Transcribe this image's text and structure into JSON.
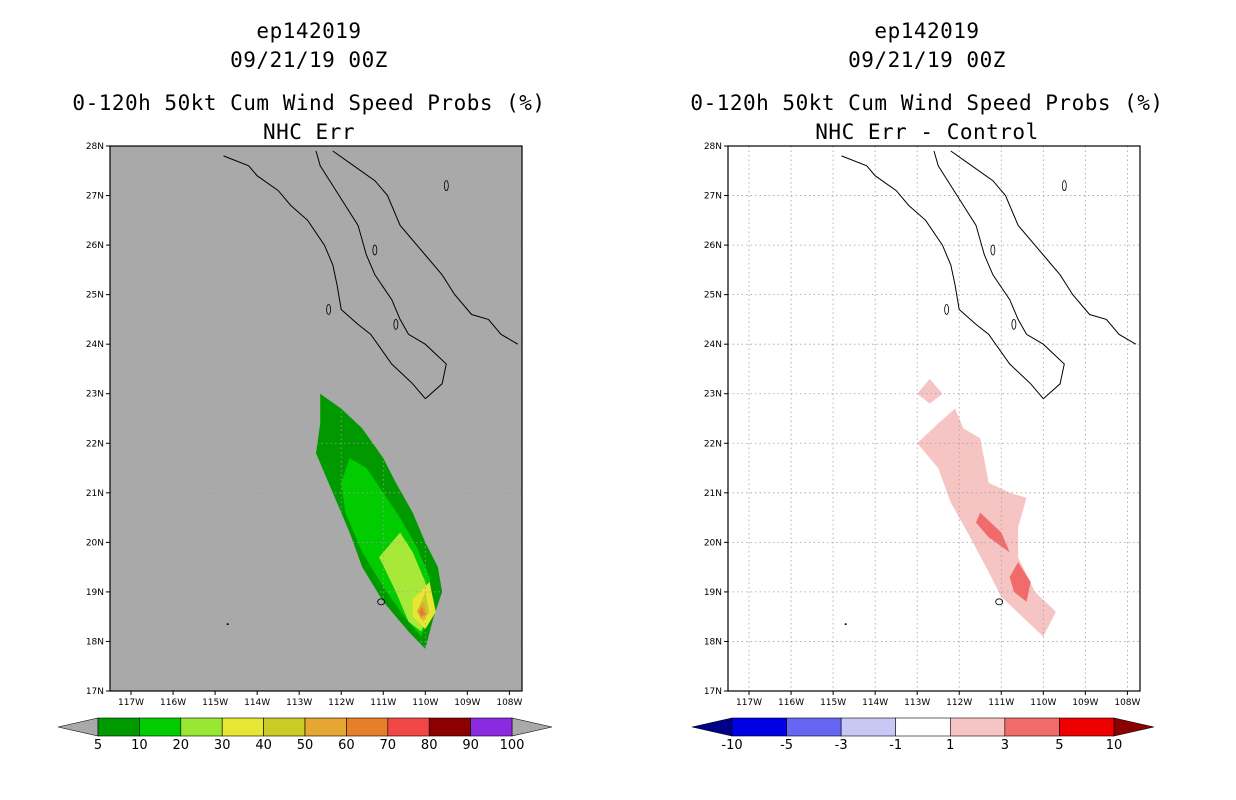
{
  "chart_data": [
    {
      "type": "filled-contour-map",
      "title_lines": [
        "ep142019",
        "09/21/19 00Z",
        "0-120h 50kt Cum Wind Speed Probs (%)",
        "NHC Err"
      ],
      "storm_id": "ep142019",
      "datetime": "09/21/19 00Z",
      "variable": "0-120h 50kt Cum Wind Speed Probs (%)",
      "subtitle": "NHC Err",
      "lon_range": [
        -117.5,
        -107.7
      ],
      "lat_range": [
        17,
        28
      ],
      "lon_ticks": [
        "117W",
        "116W",
        "115W",
        "114W",
        "113W",
        "112W",
        "111W",
        "110W",
        "109W",
        "108W"
      ],
      "lat_ticks": [
        "17N",
        "18N",
        "19N",
        "20N",
        "21N",
        "22N",
        "23N",
        "24N",
        "25N",
        "26N",
        "27N",
        "28N"
      ],
      "background_color": "#a9a9a9",
      "colorbar": {
        "labels": [
          "5",
          "10",
          "20",
          "30",
          "40",
          "50",
          "60",
          "70",
          "80",
          "90",
          "100"
        ],
        "colors": [
          "#009900",
          "#00cc00",
          "#99e633",
          "#e6e633",
          "#cccc29",
          "#e6a633",
          "#e67f29",
          "#f24747",
          "#8b0000",
          "#8a2be2"
        ],
        "end_color": "#a9a9a9"
      },
      "contours": [
        {
          "level": "5-10",
          "color": "#009900",
          "points": [
            [
              -112.5,
              23
            ],
            [
              -112,
              22.7
            ],
            [
              -111.5,
              22.3
            ],
            [
              -111,
              21.7
            ],
            [
              -110.7,
              21.2
            ],
            [
              -110.3,
              20.6
            ],
            [
              -110,
              20.0
            ],
            [
              -109.7,
              19.5
            ],
            [
              -109.6,
              19.0
            ],
            [
              -109.8,
              18.5
            ],
            [
              -110,
              17.85
            ],
            [
              -110.4,
              18.2
            ],
            [
              -111,
              18.8
            ],
            [
              -111.5,
              19.5
            ],
            [
              -111.8,
              20.2
            ],
            [
              -112.2,
              21.0
            ],
            [
              -112.6,
              21.8
            ],
            [
              -112.5,
              22.4
            ]
          ]
        },
        {
          "level": "10-20",
          "color": "#00cc00",
          "points": [
            [
              -111.8,
              21.7
            ],
            [
              -111.4,
              21.5
            ],
            [
              -111,
              21.0
            ],
            [
              -110.6,
              20.5
            ],
            [
              -110.2,
              19.9
            ],
            [
              -109.9,
              19.3
            ],
            [
              -109.8,
              18.7
            ],
            [
              -110.1,
              18.1
            ],
            [
              -110.5,
              18.5
            ],
            [
              -111,
              19.1
            ],
            [
              -111.5,
              19.8
            ],
            [
              -111.9,
              20.6
            ],
            [
              -112,
              21.2
            ]
          ]
        },
        {
          "level": "20-30",
          "color": "#a8e838",
          "points": [
            [
              -110.6,
              20.2
            ],
            [
              -110.3,
              19.8
            ],
            [
              -110,
              19.2
            ],
            [
              -109.85,
              18.7
            ],
            [
              -110.1,
              18.2
            ],
            [
              -110.4,
              18.4
            ],
            [
              -110.7,
              19.0
            ],
            [
              -111.1,
              19.7
            ]
          ]
        },
        {
          "level": "30-40",
          "color": "#e6e633",
          "points": [
            [
              -109.9,
              19.2
            ],
            [
              -109.75,
              18.6
            ],
            [
              -110.0,
              18.25
            ],
            [
              -110.3,
              18.5
            ],
            [
              -110.3,
              18.85
            ]
          ]
        },
        {
          "level": "40-50",
          "color": "#cccc29",
          "points": [
            [
              -110,
              19.0
            ],
            [
              -109.9,
              18.6
            ],
            [
              -110.05,
              18.4
            ],
            [
              -110.2,
              18.6
            ]
          ]
        },
        {
          "level": "50-60",
          "color": "#e6a633",
          "points": [
            [
              -110.05,
              18.8
            ],
            [
              -109.95,
              18.55
            ],
            [
              -110.1,
              18.45
            ],
            [
              -110.2,
              18.62
            ]
          ]
        },
        {
          "level": "60-70",
          "color": "#e67f29",
          "points": [
            [
              -110.08,
              18.7
            ],
            [
              -110.0,
              18.55
            ],
            [
              -110.1,
              18.5
            ],
            [
              -110.15,
              18.6
            ]
          ]
        }
      ]
    },
    {
      "type": "filled-contour-map",
      "title_lines": [
        "ep142019",
        "09/21/19 00Z",
        "0-120h 50kt Cum Wind Speed Probs (%)",
        "NHC Err - Control"
      ],
      "storm_id": "ep142019",
      "datetime": "09/21/19 00Z",
      "variable": "0-120h 50kt Cum Wind Speed Probs (%)",
      "subtitle": "NHC Err - Control",
      "lon_range": [
        -117.5,
        -107.7
      ],
      "lat_range": [
        17,
        28
      ],
      "lon_ticks": [
        "117W",
        "116W",
        "115W",
        "114W",
        "113W",
        "112W",
        "111W",
        "110W",
        "109W",
        "108W"
      ],
      "lat_ticks": [
        "17N",
        "18N",
        "19N",
        "20N",
        "21N",
        "22N",
        "23N",
        "24N",
        "25N",
        "26N",
        "27N",
        "28N"
      ],
      "background_color": "#ffffff",
      "colorbar": {
        "labels": [
          "-10",
          "-5",
          "-3",
          "-1",
          "1",
          "3",
          "5",
          "10"
        ],
        "colors": [
          "#0000e6",
          "#6666f2",
          "#c8c8f5",
          "#ffffff",
          "#f7c4c4",
          "#f26b6b",
          "#ee0000"
        ],
        "low_end_color": "#00008b",
        "high_end_color": "#8b0000"
      },
      "contours": [
        {
          "level": "1-3",
          "color": "#f7c4c4",
          "points": [
            [
              -112.1,
              22.7
            ],
            [
              -111.9,
              22.3
            ],
            [
              -111.5,
              22.1
            ],
            [
              -111.3,
              21.2
            ],
            [
              -110.8,
              21.0
            ],
            [
              -110.4,
              20.9
            ],
            [
              -110.6,
              20.3
            ],
            [
              -110.6,
              19.7
            ],
            [
              -110.2,
              19.0
            ],
            [
              -109.7,
              18.6
            ],
            [
              -110.0,
              18.1
            ],
            [
              -110.5,
              18.5
            ],
            [
              -111.0,
              18.9
            ],
            [
              -111.3,
              19.4
            ],
            [
              -111.8,
              20.2
            ],
            [
              -112.2,
              20.8
            ],
            [
              -112.5,
              21.5
            ],
            [
              -113.0,
              22.0
            ],
            [
              -112.5,
              22.4
            ]
          ]
        },
        {
          "level": "1-3",
          "color": "#f7c4c4",
          "points": [
            [
              -112.7,
              23.3
            ],
            [
              -112.4,
              23.0
            ],
            [
              -112.7,
              22.8
            ],
            [
              -113.0,
              23.0
            ]
          ]
        },
        {
          "level": "3-5",
          "color": "#f26b6b",
          "points": [
            [
              -111.5,
              20.6
            ],
            [
              -111.0,
              20.2
            ],
            [
              -110.8,
              19.8
            ],
            [
              -111.3,
              20.1
            ],
            [
              -111.6,
              20.4
            ]
          ]
        },
        {
          "level": "3-5",
          "color": "#f26b6b",
          "points": [
            [
              -110.6,
              19.6
            ],
            [
              -110.3,
              19.2
            ],
            [
              -110.4,
              18.8
            ],
            [
              -110.7,
              19.0
            ],
            [
              -110.8,
              19.3
            ]
          ]
        }
      ]
    }
  ]
}
